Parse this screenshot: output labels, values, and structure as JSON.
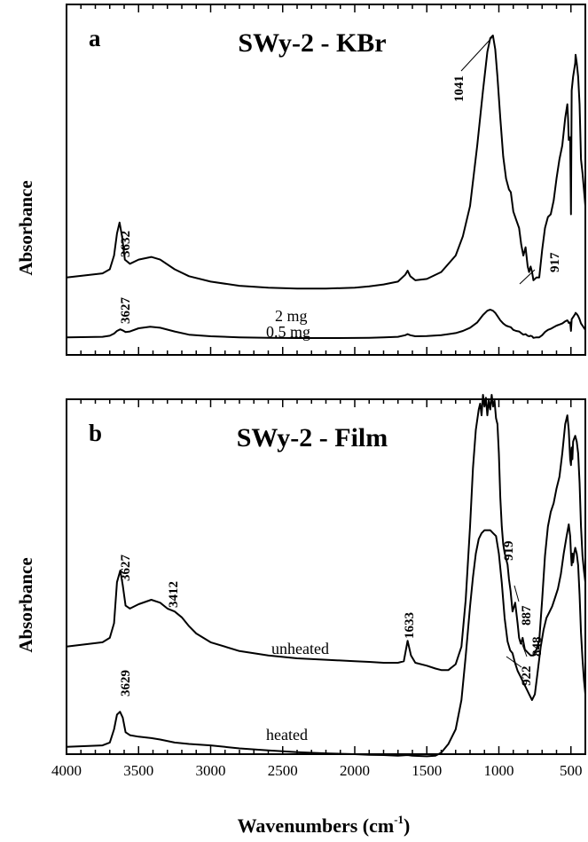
{
  "chart_data": [
    {
      "type": "line",
      "panel_label": "a",
      "title": "SWy-2 - KBr",
      "ylabel": "Absorbance",
      "xlim": [
        4000,
        400
      ],
      "x_reversed": true,
      "series": [
        {
          "name": "2 mg",
          "x": [
            4000,
            3750,
            3700,
            3670,
            3650,
            3632,
            3615,
            3595,
            3560,
            3500,
            3412,
            3350,
            3250,
            3150,
            3000,
            2800,
            2600,
            2400,
            2200,
            2000,
            1900,
            1800,
            1700,
            1650,
            1633,
            1615,
            1580,
            1500,
            1400,
            1300,
            1250,
            1200,
            1150,
            1110,
            1080,
            1060,
            1041,
            1025,
            1010,
            990,
            970,
            950,
            930,
            917,
            900,
            880,
            860,
            845,
            830,
            815,
            800,
            790,
            780,
            770,
            760,
            740,
            720,
            700,
            680,
            660,
            640,
            620,
            600,
            580,
            560,
            540,
            525,
            520,
            515,
            505,
            500,
            495,
            485,
            470,
            468,
            460,
            450,
            440,
            430,
            420,
            410,
            400
          ],
          "y": [
            0.12,
            0.135,
            0.15,
            0.2,
            0.28,
            0.32,
            0.27,
            0.185,
            0.17,
            0.185,
            0.195,
            0.185,
            0.15,
            0.125,
            0.105,
            0.09,
            0.083,
            0.08,
            0.08,
            0.083,
            0.088,
            0.095,
            0.105,
            0.13,
            0.145,
            0.125,
            0.11,
            0.115,
            0.14,
            0.2,
            0.27,
            0.38,
            0.6,
            0.8,
            0.94,
            0.99,
            1.0,
            0.95,
            0.85,
            0.7,
            0.56,
            0.48,
            0.44,
            0.43,
            0.36,
            0.33,
            0.3,
            0.24,
            0.2,
            0.23,
            0.16,
            0.14,
            0.16,
            0.14,
            0.11,
            0.12,
            0.12,
            0.22,
            0.3,
            0.34,
            0.35,
            0.4,
            0.48,
            0.55,
            0.6,
            0.7,
            0.75,
            0.7,
            0.62,
            0.63,
            0.35,
            0.8,
            0.85,
            0.9,
            0.93,
            0.9,
            0.85,
            0.75,
            0.55,
            0.5,
            0.44,
            0.38
          ]
        },
        {
          "name": "0.5 mg",
          "x": [
            4000,
            3750,
            3700,
            3670,
            3650,
            3627,
            3610,
            3590,
            3560,
            3500,
            3420,
            3350,
            3250,
            3150,
            3000,
            2800,
            2600,
            2400,
            2200,
            2000,
            1900,
            1800,
            1700,
            1650,
            1633,
            1615,
            1580,
            1500,
            1400,
            1300,
            1250,
            1200,
            1150,
            1110,
            1080,
            1060,
            1041,
            1025,
            1010,
            990,
            970,
            950,
            930,
            917,
            900,
            880,
            860,
            845,
            830,
            815,
            800,
            790,
            780,
            770,
            760,
            740,
            720,
            700,
            680,
            660,
            640,
            620,
            600,
            580,
            560,
            540,
            525,
            520,
            515,
            505,
            500,
            495,
            485,
            470,
            468,
            460,
            450,
            440,
            430,
            420,
            410,
            400
          ],
          "y": [
            0.04,
            0.045,
            0.055,
            0.075,
            0.1,
            0.115,
            0.105,
            0.09,
            0.095,
            0.125,
            0.14,
            0.13,
            0.095,
            0.065,
            0.05,
            0.04,
            0.035,
            0.033,
            0.033,
            0.034,
            0.036,
            0.04,
            0.045,
            0.06,
            0.07,
            0.06,
            0.05,
            0.052,
            0.06,
            0.08,
            0.1,
            0.13,
            0.18,
            0.25,
            0.29,
            0.3,
            0.29,
            0.27,
            0.24,
            0.2,
            0.17,
            0.15,
            0.14,
            0.135,
            0.11,
            0.1,
            0.095,
            0.08,
            0.065,
            0.07,
            0.055,
            0.05,
            0.055,
            0.05,
            0.035,
            0.04,
            0.04,
            0.06,
            0.09,
            0.11,
            0.12,
            0.135,
            0.15,
            0.16,
            0.17,
            0.19,
            0.2,
            0.19,
            0.175,
            0.18,
            0.1,
            0.21,
            0.23,
            0.26,
            0.27,
            0.26,
            0.24,
            0.21,
            0.17,
            0.15,
            0.13,
            0.11
          ]
        }
      ],
      "annotations": [
        "3632",
        "3627",
        "1041",
        "917"
      ],
      "curve_labels": [
        "2 mg",
        "0.5 mg"
      ]
    },
    {
      "type": "line",
      "panel_label": "b",
      "title": "SWy-2 - Film",
      "ylabel": "Absorbance",
      "xlabel_main": "Wavenumbers (cm",
      "xlabel_exp": "-1",
      "xlabel_close": ")",
      "xlim": [
        4000,
        400
      ],
      "x_reversed": true,
      "x_ticks": [
        "4000",
        "3500",
        "3000",
        "2500",
        "2000",
        "1500",
        "1000",
        "500"
      ],
      "x_tick_values": [
        4000,
        3500,
        3000,
        2500,
        2000,
        1500,
        1000,
        500
      ],
      "series": [
        {
          "name": "unheated",
          "x": [
            4000,
            3750,
            3700,
            3670,
            3650,
            3627,
            3610,
            3590,
            3560,
            3500,
            3412,
            3350,
            3300,
            3250,
            3200,
            3150,
            3100,
            3000,
            2800,
            2600,
            2400,
            2200,
            2000,
            1900,
            1800,
            1700,
            1660,
            1633,
            1610,
            1580,
            1500,
            1440,
            1400,
            1350,
            1300,
            1260,
            1230,
            1200,
            1180,
            1160,
            1140,
            1130,
            1120,
            1110,
            1100,
            1090,
            1080,
            1070,
            1060,
            1050,
            1040,
            1030,
            1020,
            1010,
            1000,
            990,
            980,
            970,
            960,
            950,
            940,
            930,
            919,
            905,
            887,
            870,
            860,
            848,
            835,
            820,
            800,
            780,
            760,
            740,
            720,
            700,
            680,
            660,
            640,
            620,
            600,
            580,
            560,
            540,
            525,
            515,
            505,
            500,
            495,
            490,
            485,
            478,
            470,
            460,
            450,
            440,
            430,
            420,
            410,
            400
          ],
          "y": [
            0.14,
            0.155,
            0.17,
            0.22,
            0.36,
            0.4,
            0.35,
            0.28,
            0.27,
            0.285,
            0.3,
            0.29,
            0.27,
            0.26,
            0.24,
            0.21,
            0.185,
            0.155,
            0.125,
            0.11,
            0.1,
            0.095,
            0.09,
            0.088,
            0.085,
            0.085,
            0.09,
            0.16,
            0.11,
            0.085,
            0.075,
            0.065,
            0.06,
            0.06,
            0.08,
            0.14,
            0.3,
            0.55,
            0.75,
            0.88,
            0.95,
            0.97,
            0.93,
            1.0,
            0.96,
            0.99,
            0.93,
            0.98,
            0.95,
            1.0,
            0.96,
            0.98,
            0.92,
            0.9,
            0.8,
            0.65,
            0.55,
            0.49,
            0.46,
            0.44,
            0.42,
            0.37,
            0.33,
            0.26,
            0.29,
            0.22,
            0.17,
            0.15,
            0.17,
            0.13,
            0.12,
            0.11,
            0.11,
            0.13,
            0.16,
            0.3,
            0.45,
            0.55,
            0.6,
            0.63,
            0.68,
            0.72,
            0.8,
            0.9,
            0.93,
            0.88,
            0.78,
            0.76,
            0.82,
            0.78,
            0.84,
            0.85,
            0.86,
            0.84,
            0.8,
            0.7,
            0.55,
            0.45,
            0.4,
            0.36
          ]
        },
        {
          "name": "heated",
          "x": [
            4000,
            3750,
            3700,
            3670,
            3650,
            3629,
            3610,
            3590,
            3560,
            3500,
            3412,
            3350,
            3250,
            3150,
            3000,
            2800,
            2600,
            2400,
            2200,
            2000,
            1900,
            1800,
            1700,
            1633,
            1600,
            1500,
            1440,
            1400,
            1350,
            1300,
            1260,
            1230,
            1200,
            1180,
            1160,
            1140,
            1120,
            1100,
            1080,
            1060,
            1040,
            1020,
            1000,
            980,
            960,
            940,
            922,
            905,
            890,
            870,
            850,
            830,
            810,
            790,
            770,
            750,
            730,
            710,
            690,
            670,
            650,
            630,
            610,
            590,
            570,
            550,
            530,
            515,
            505,
            500,
            495,
            490,
            485,
            478,
            470,
            460,
            450,
            440,
            430,
            420,
            410,
            400
          ],
          "y": [
            0.04,
            0.045,
            0.055,
            0.1,
            0.15,
            0.16,
            0.14,
            0.09,
            0.08,
            0.075,
            0.07,
            0.065,
            0.055,
            0.05,
            0.045,
            0.035,
            0.028,
            0.022,
            0.018,
            0.015,
            0.013,
            0.012,
            0.01,
            0.012,
            0.01,
            0.008,
            0.01,
            0.02,
            0.05,
            0.1,
            0.2,
            0.35,
            0.52,
            0.62,
            0.7,
            0.75,
            0.77,
            0.78,
            0.78,
            0.78,
            0.77,
            0.76,
            0.7,
            0.6,
            0.48,
            0.4,
            0.37,
            0.36,
            0.33,
            0.3,
            0.28,
            0.26,
            0.24,
            0.22,
            0.2,
            0.22,
            0.3,
            0.38,
            0.44,
            0.48,
            0.5,
            0.52,
            0.55,
            0.58,
            0.63,
            0.7,
            0.76,
            0.8,
            0.76,
            0.7,
            0.66,
            0.7,
            0.67,
            0.7,
            0.72,
            0.7,
            0.66,
            0.56,
            0.43,
            0.34,
            0.27,
            0.22
          ]
        }
      ],
      "annotations": [
        "3627",
        "3412",
        "1633",
        "919",
        "887",
        "848",
        "3629",
        "922"
      ],
      "curve_labels": [
        "unheated",
        "heated"
      ]
    }
  ]
}
